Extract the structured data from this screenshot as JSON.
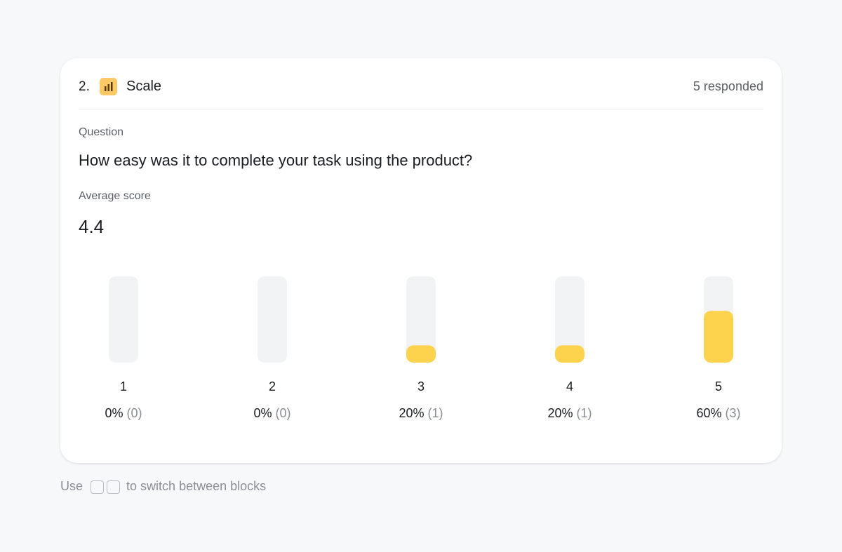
{
  "header": {
    "number": "2.",
    "block_type": "Scale",
    "responded": "5 responded"
  },
  "question_label": "Question",
  "question": "How easy was it to complete your task using the product?",
  "average_label": "Average score",
  "average": 4.4,
  "chart_data": {
    "type": "bar",
    "categories": [
      "1",
      "2",
      "3",
      "4",
      "5"
    ],
    "values": [
      0,
      0,
      20,
      20,
      60
    ],
    "value_labels": [
      "0%",
      "0%",
      "20%",
      "20%",
      "60%"
    ],
    "counts": [
      0,
      0,
      1,
      1,
      3
    ],
    "count_labels": [
      "(0)",
      "(0)",
      "(1)",
      "(1)",
      "(3)"
    ],
    "ylim": [
      0,
      100
    ],
    "color": "#fdd34d"
  },
  "footer": {
    "prefix": "Use",
    "suffix": "to switch between blocks"
  }
}
